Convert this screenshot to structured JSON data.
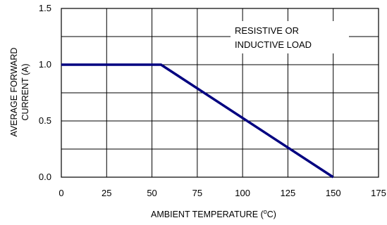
{
  "chart_data": {
    "type": "line",
    "xlabel": "AMBIENT TEMPERATURE (",
    "xlabel_sup": "o",
    "xlabel_tail": "C)",
    "ylabel_line1": "AVERAGE FORWARD",
    "ylabel_line2": "CURRENT (A)",
    "annotation_line1": "RESISTIVE OR",
    "annotation_line2": "INDUCTIVE LOAD",
    "xlim": [
      0,
      175
    ],
    "ylim": [
      0,
      1.5
    ],
    "x_ticks": [
      "0",
      "25",
      "50",
      "75",
      "100",
      "125",
      "150",
      "175"
    ],
    "y_ticks": [
      "0.0",
      "0.5",
      "1.0",
      "1.5"
    ],
    "grid": true,
    "series": [
      {
        "color": "#000080",
        "x": [
          0,
          55,
          150
        ],
        "y": [
          1.0,
          1.0,
          0.0
        ]
      }
    ]
  }
}
